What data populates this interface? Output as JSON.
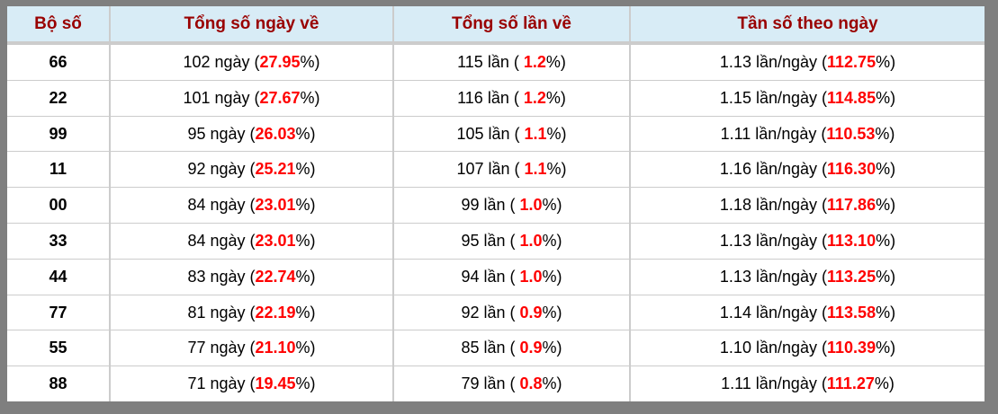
{
  "colors": {
    "frame_gray": "#7f7f7f",
    "header_bg": "#d8ecf6",
    "header_text": "#990000",
    "highlight_red": "#ff0000",
    "grid_line": "#cccccc"
  },
  "table": {
    "headers": [
      "Bộ số",
      "Tổng số ngày về",
      "Tổng số lần về",
      "Tần số theo ngày"
    ],
    "rows": [
      {
        "pair": "66",
        "days_pre": "102 ngày (",
        "days_red": "27.95",
        "days_post": "%)",
        "times_pre": "115 lần ( ",
        "times_red": "1.2",
        "times_post": "%)",
        "freq_pre": "1.13 lần/ngày (",
        "freq_red": "112.75",
        "freq_post": "%)"
      },
      {
        "pair": "22",
        "days_pre": "101 ngày (",
        "days_red": "27.67",
        "days_post": "%)",
        "times_pre": "116 lần ( ",
        "times_red": "1.2",
        "times_post": "%)",
        "freq_pre": "1.15 lần/ngày (",
        "freq_red": "114.85",
        "freq_post": "%)"
      },
      {
        "pair": "99",
        "days_pre": "95 ngày (",
        "days_red": "26.03",
        "days_post": "%)",
        "times_pre": "105 lần ( ",
        "times_red": "1.1",
        "times_post": "%)",
        "freq_pre": "1.11 lần/ngày (",
        "freq_red": "110.53",
        "freq_post": "%)"
      },
      {
        "pair": "11",
        "days_pre": "92 ngày (",
        "days_red": "25.21",
        "days_post": "%)",
        "times_pre": "107 lần ( ",
        "times_red": "1.1",
        "times_post": "%)",
        "freq_pre": "1.16 lần/ngày (",
        "freq_red": "116.30",
        "freq_post": "%)"
      },
      {
        "pair": "00",
        "days_pre": "84 ngày (",
        "days_red": "23.01",
        "days_post": "%)",
        "times_pre": "99 lần ( ",
        "times_red": "1.0",
        "times_post": "%)",
        "freq_pre": "1.18 lần/ngày (",
        "freq_red": "117.86",
        "freq_post": "%)"
      },
      {
        "pair": "33",
        "days_pre": "84 ngày (",
        "days_red": "23.01",
        "days_post": "%)",
        "times_pre": "95 lần ( ",
        "times_red": "1.0",
        "times_post": "%)",
        "freq_pre": "1.13 lần/ngày (",
        "freq_red": "113.10",
        "freq_post": "%)"
      },
      {
        "pair": "44",
        "days_pre": "83 ngày (",
        "days_red": "22.74",
        "days_post": "%)",
        "times_pre": "94 lần ( ",
        "times_red": "1.0",
        "times_post": "%)",
        "freq_pre": "1.13 lần/ngày (",
        "freq_red": "113.25",
        "freq_post": "%)"
      },
      {
        "pair": "77",
        "days_pre": "81 ngày (",
        "days_red": "22.19",
        "days_post": "%)",
        "times_pre": "92 lần ( ",
        "times_red": "0.9",
        "times_post": "%)",
        "freq_pre": "1.14 lần/ngày (",
        "freq_red": "113.58",
        "freq_post": "%)"
      },
      {
        "pair": "55",
        "days_pre": "77 ngày (",
        "days_red": "21.10",
        "days_post": "%)",
        "times_pre": "85 lần ( ",
        "times_red": "0.9",
        "times_post": "%)",
        "freq_pre": "1.10 lần/ngày (",
        "freq_red": "110.39",
        "freq_post": "%)"
      },
      {
        "pair": "88",
        "days_pre": "71 ngày (",
        "days_red": "19.45",
        "days_post": "%)",
        "times_pre": "79 lần ( ",
        "times_red": "0.8",
        "times_post": "%)",
        "freq_pre": "1.11 lần/ngày (",
        "freq_red": "111.27",
        "freq_post": "%)"
      }
    ]
  }
}
